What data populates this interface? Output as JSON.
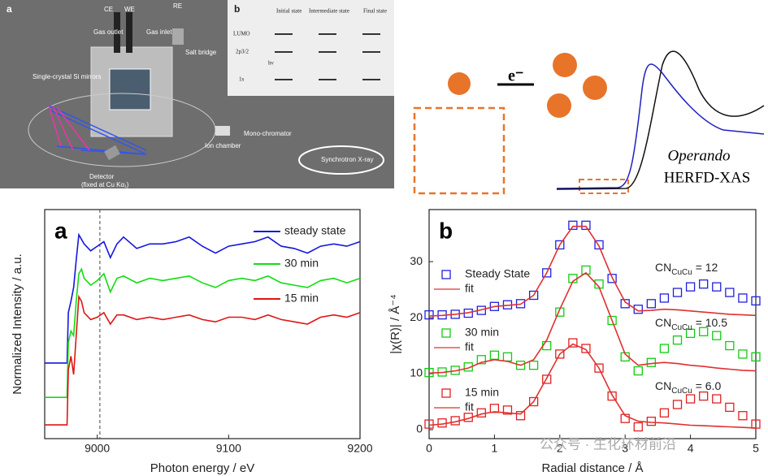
{
  "schematic": {
    "label": "a",
    "ce": "CE",
    "we": "WE",
    "re": "RE",
    "gas_outlet": "Gas outlet",
    "gas_inlet": "Gas inlet",
    "salt_bridge": "Salt bridge",
    "mirrors": "Single-crystal Si mirrors",
    "detector": "Detector",
    "detector_note": "(fixed at Cu Kα₁)",
    "ion_chamber": "Ion chamber",
    "monochromator": "Mono-chromator",
    "source": "Synchrotron X-ray",
    "inset": {
      "label": "b",
      "initial": "Initial state",
      "intermediate": "Intermediate state",
      "final": "Final state",
      "lumo": "LUMO",
      "p": "2p3/2",
      "s": "1s",
      "hv": "hν"
    }
  },
  "illustration": {
    "electron": "e⁻",
    "operando": "Operando",
    "method": "HERFD-XAS"
  },
  "chart_data": [
    {
      "type": "line",
      "label": "a",
      "x_label": "Photon energy / eV",
      "y_label": "Normalized Intensity / a.u.",
      "x": [
        8960,
        8977,
        8978,
        8980,
        8982,
        8984,
        8986,
        8988,
        8990,
        8995,
        9000,
        9005,
        9010,
        9015,
        9020,
        9030,
        9040,
        9050,
        9060,
        9070,
        9080,
        9090,
        9100,
        9110,
        9120,
        9130,
        9140,
        9150,
        9160,
        9170,
        9180,
        9190,
        9200
      ],
      "series": [
        {
          "name": "steady state",
          "color": "#1515e0",
          "values": [
            0.33,
            0.33,
            0.55,
            0.6,
            0.66,
            0.78,
            0.89,
            0.87,
            0.85,
            0.82,
            0.84,
            0.86,
            0.79,
            0.85,
            0.88,
            0.83,
            0.85,
            0.85,
            0.86,
            0.88,
            0.84,
            0.81,
            0.84,
            0.85,
            0.86,
            0.88,
            0.84,
            0.83,
            0.81,
            0.84,
            0.85,
            0.84,
            0.86
          ]
        },
        {
          "name": "30 min",
          "color": "#11dd11",
          "values": [
            0.18,
            0.18,
            0.42,
            0.47,
            0.45,
            0.6,
            0.72,
            0.74,
            0.7,
            0.67,
            0.69,
            0.72,
            0.64,
            0.7,
            0.71,
            0.68,
            0.7,
            0.69,
            0.7,
            0.71,
            0.68,
            0.66,
            0.69,
            0.7,
            0.69,
            0.71,
            0.68,
            0.67,
            0.66,
            0.69,
            0.7,
            0.68,
            0.7
          ]
        },
        {
          "name": "15 min",
          "color": "#e01515",
          "values": [
            0.06,
            0.06,
            0.3,
            0.36,
            0.28,
            0.45,
            0.62,
            0.6,
            0.55,
            0.52,
            0.53,
            0.55,
            0.5,
            0.54,
            0.54,
            0.52,
            0.53,
            0.52,
            0.53,
            0.54,
            0.52,
            0.51,
            0.53,
            0.53,
            0.52,
            0.54,
            0.52,
            0.51,
            0.5,
            0.53,
            0.54,
            0.53,
            0.55
          ]
        }
      ],
      "xlim": [
        8960,
        9200
      ],
      "xticks": [
        9000,
        9100,
        9200
      ],
      "ylim": [
        0,
        1
      ],
      "ref_line_x": 9002
    },
    {
      "type": "scatter",
      "label": "b",
      "x_label": "Radial distance / Å",
      "y_label": "|χ(R)| / Å⁻⁴",
      "x": [
        0,
        0.2,
        0.4,
        0.6,
        0.8,
        1.0,
        1.2,
        1.4,
        1.6,
        1.8,
        2.0,
        2.2,
        2.4,
        2.6,
        2.8,
        3.0,
        3.2,
        3.4,
        3.6,
        3.8,
        4.0,
        4.2,
        4.4,
        4.6,
        4.8,
        5.0
      ],
      "series": [
        {
          "name": "Steady State",
          "type": "scatter",
          "color": "#2020e0",
          "values": [
            20.5,
            20.5,
            20.6,
            20.8,
            21.3,
            22,
            22.3,
            22.5,
            24,
            28,
            33,
            36.5,
            36.5,
            33,
            27,
            22.5,
            21.5,
            22.5,
            23.5,
            24.5,
            25.5,
            26,
            25.5,
            24.5,
            23.5,
            23
          ]
        },
        {
          "name": "fit",
          "type": "line",
          "color": "#e03030",
          "values": [
            20.3,
            20.4,
            20.6,
            20.9,
            21.4,
            22.0,
            22.2,
            22.4,
            24.0,
            28.0,
            33.0,
            36.3,
            36.3,
            32.8,
            27.2,
            22.8,
            21.2,
            21.3,
            21.5,
            21.4,
            21.2,
            21.0,
            20.8,
            20.6,
            20.5,
            20.4
          ]
        },
        {
          "name": "30 min",
          "type": "scatter",
          "color": "#11cc11",
          "values": [
            10.2,
            10.3,
            10.6,
            11.2,
            12.5,
            13.3,
            13.0,
            11.5,
            11.5,
            15,
            21,
            27,
            28.5,
            26,
            19.5,
            13,
            10.5,
            12,
            14.5,
            16,
            17.2,
            17.5,
            16.8,
            15,
            13.5,
            13
          ]
        },
        {
          "name": "fit",
          "type": "line",
          "color": "#e03030",
          "values": [
            10.1,
            10.2,
            10.5,
            11.0,
            12.0,
            12.5,
            12.2,
            11.5,
            12.5,
            16,
            21.5,
            26.5,
            28,
            25.5,
            19.5,
            13.5,
            11.5,
            11.8,
            12.0,
            11.8,
            11.5,
            11.3,
            11.0,
            10.8,
            10.6,
            10.5
          ]
        },
        {
          "name": "15 min",
          "type": "scatter",
          "color": "#e02020",
          "values": [
            1.0,
            1.2,
            1.6,
            2.2,
            3.0,
            3.8,
            3.5,
            2.5,
            5,
            9,
            13.5,
            15.5,
            14.5,
            11,
            6,
            2,
            0.5,
            1.5,
            3,
            4.5,
            5.5,
            6,
            5.5,
            4,
            2.5,
            1
          ]
        },
        {
          "name": "fit",
          "type": "line",
          "color": "#e03030",
          "values": [
            0.8,
            1.0,
            1.4,
            2.0,
            2.8,
            3.2,
            3.0,
            2.8,
            5.0,
            9.2,
            13.5,
            15.3,
            14.3,
            11.0,
            6.2,
            2.5,
            1.5,
            1.3,
            1.2,
            1.0,
            0.8,
            0.7,
            0.6,
            0.5,
            0.4,
            0.3
          ]
        }
      ],
      "annotations": [
        {
          "text": "CN",
          "sub": "CuCu",
          "rest": " = 12"
        },
        {
          "text": "CN",
          "sub": "CuCu",
          "rest": " = 10.5"
        },
        {
          "text": "CN",
          "sub": "CuCu",
          "rest": " = 6.0"
        }
      ],
      "xlim": [
        0,
        5
      ],
      "xticks": [
        0,
        1,
        2,
        3,
        4,
        5
      ],
      "ylim": [
        -1.6,
        39.3
      ],
      "yticks": [
        0,
        10,
        20,
        30
      ]
    }
  ],
  "watermark": "公众号 · 生化环材前沿"
}
